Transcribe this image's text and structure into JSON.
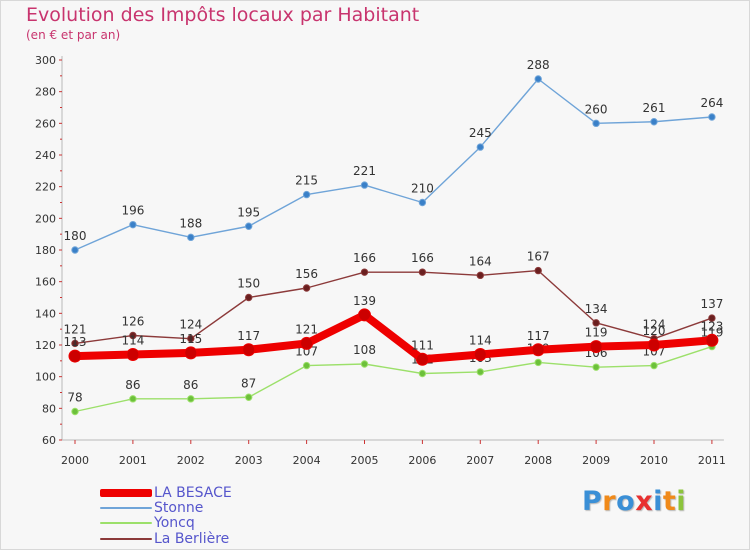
{
  "chart_data": {
    "type": "line",
    "title": "Evolution des Impôts locaux par Habitant",
    "subtitle": "(en € et par an)",
    "xlabel": "",
    "ylabel": "",
    "categories": [
      "2000",
      "2001",
      "2002",
      "2003",
      "2004",
      "2005",
      "2006",
      "2007",
      "2008",
      "2009",
      "2010",
      "2011"
    ],
    "ylim": [
      60,
      300
    ],
    "yticks": [
      60,
      80,
      100,
      120,
      140,
      160,
      180,
      200,
      220,
      240,
      260,
      280,
      300
    ],
    "grid": false,
    "legend_position": "bottom-left",
    "series": [
      {
        "name": "Stonne",
        "color": "#6fa4d8",
        "values": [
          180,
          196,
          188,
          195,
          215,
          221,
          210,
          245,
          288,
          260,
          261,
          264
        ]
      },
      {
        "name": "La Berlière",
        "color": "#8c3a3a",
        "values": [
          121,
          126,
          124,
          150,
          156,
          166,
          166,
          164,
          167,
          134,
          124,
          137
        ]
      },
      {
        "name": "Yoncq",
        "color": "#9ce06a",
        "values": [
          78,
          86,
          86,
          87,
          107,
          108,
          102,
          103,
          109,
          106,
          107,
          119
        ]
      },
      {
        "name": "LA BESACE",
        "color": "#ee0000",
        "values": [
          113,
          114,
          115,
          117,
          121,
          139,
          111,
          114,
          117,
          119,
          120,
          123
        ]
      }
    ],
    "legend": [
      "LA BESACE",
      "Stonne",
      "Yoncq",
      "La Berlière"
    ]
  },
  "logo": {
    "letters": [
      "P",
      "r",
      "o",
      "x",
      "i",
      "t",
      "i"
    ],
    "colors": [
      "#3a8fd6",
      "#f08a1a",
      "#3a8fd6",
      "#e83030",
      "#3a8fd6",
      "#f08a1a",
      "#8cc43c"
    ]
  }
}
